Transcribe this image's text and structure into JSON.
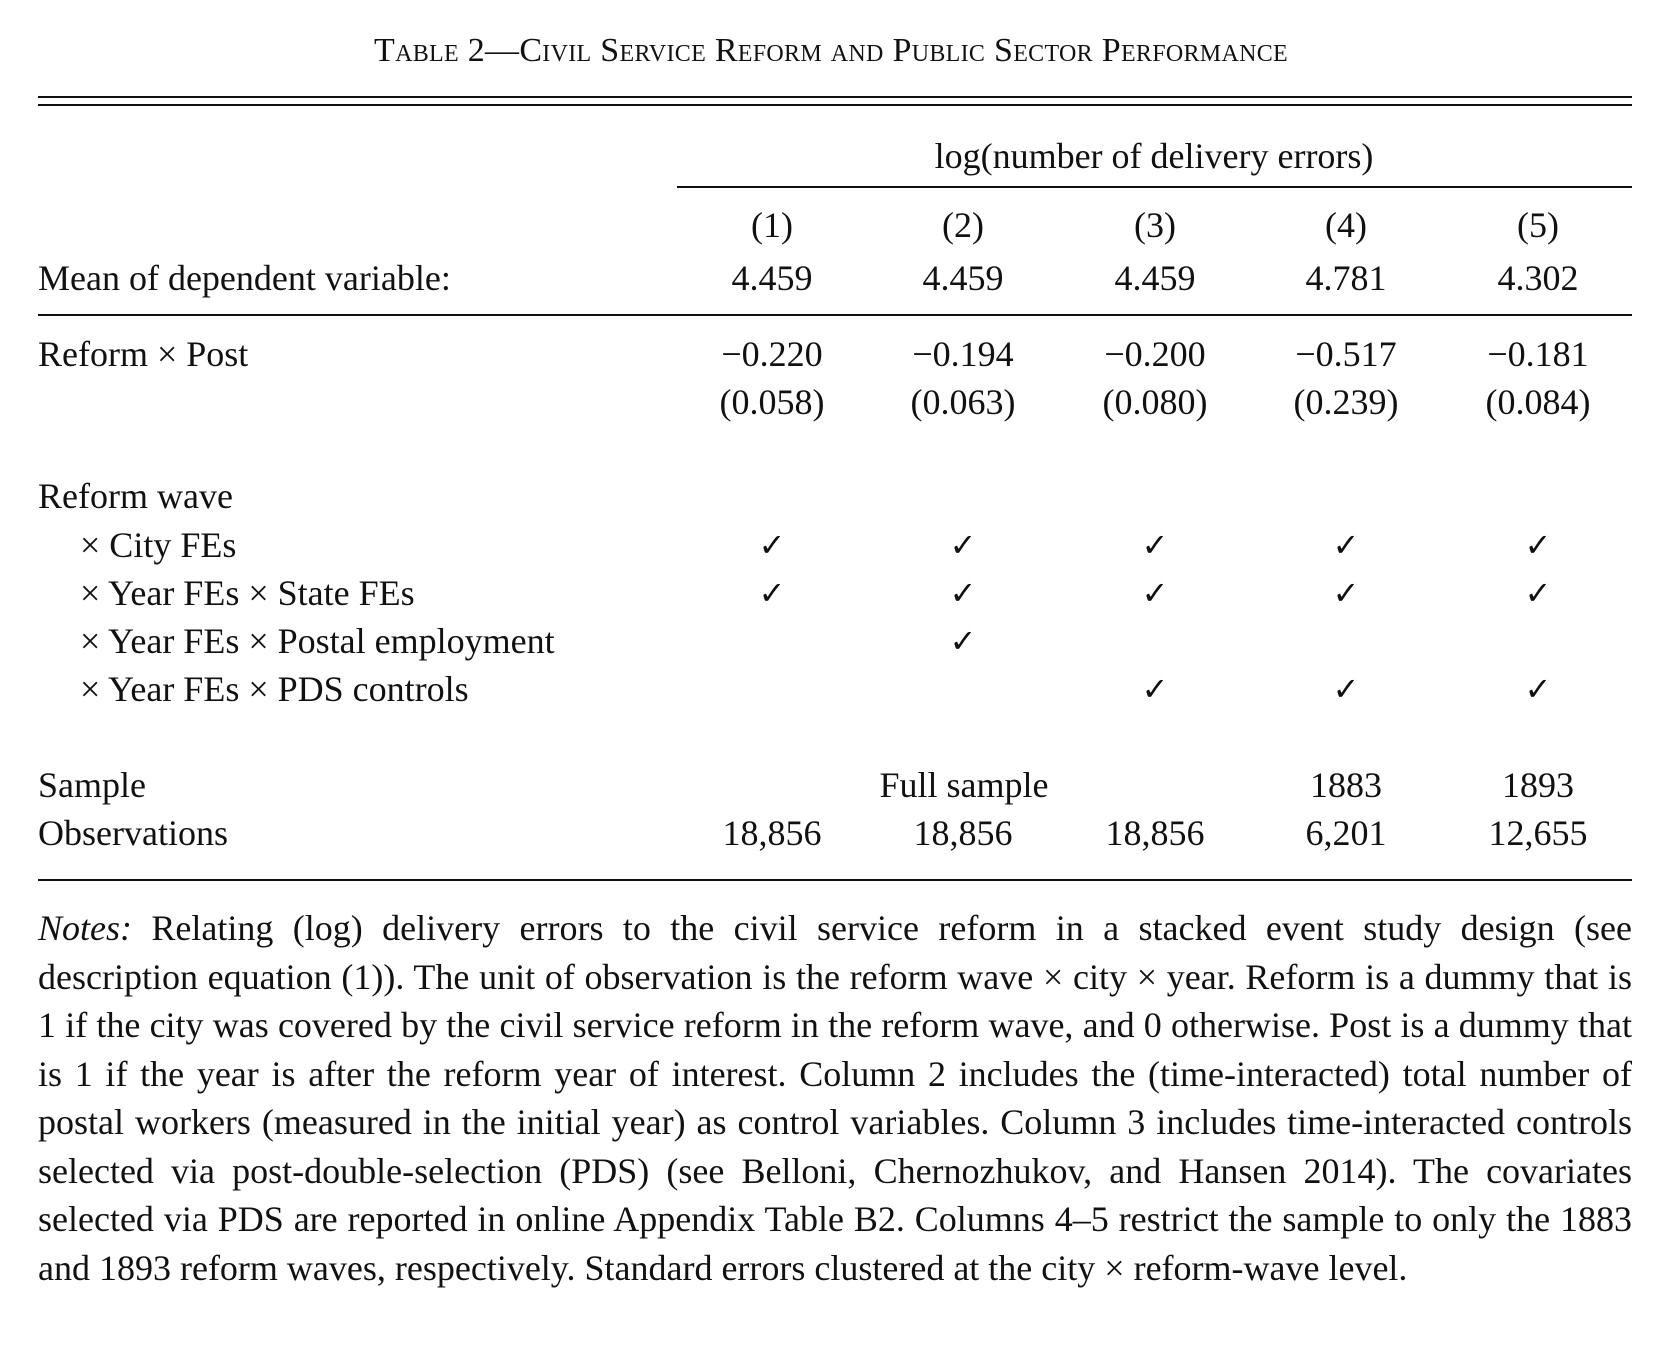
{
  "title": "Table 2—Civil Service Reform and Public Sector Performance",
  "dep_var_header": "log(number of delivery errors)",
  "columns": [
    "(1)",
    "(2)",
    "(3)",
    "(4)",
    "(5)"
  ],
  "mean_row": {
    "label": "Mean of dependent variable:",
    "values": [
      "4.459",
      "4.459",
      "4.459",
      "4.781",
      "4.302"
    ]
  },
  "reform_post": {
    "label": "Reform × Post",
    "coefs": [
      "−0.220",
      "−0.194",
      "−0.200",
      "−0.517",
      "−0.181"
    ],
    "ses": [
      "(0.058)",
      "(0.063)",
      "(0.080)",
      "(0.239)",
      "(0.084)"
    ]
  },
  "controls_header": "Reform wave",
  "controls": [
    {
      "label": "× City FEs",
      "checks": [
        true,
        true,
        true,
        true,
        true
      ]
    },
    {
      "label": "× Year FEs × State FEs",
      "checks": [
        true,
        true,
        true,
        true,
        true
      ]
    },
    {
      "label": "× Year FEs × Postal employment",
      "checks": [
        false,
        true,
        false,
        false,
        false
      ]
    },
    {
      "label": "× Year FEs × PDS controls",
      "checks": [
        false,
        false,
        true,
        true,
        true
      ]
    }
  ],
  "check_glyph": "✓",
  "sample_row": {
    "label": "Sample",
    "full": "Full sample",
    "col4": "1883",
    "col5": "1893"
  },
  "obs_row": {
    "label": "Observations",
    "values": [
      "18,856",
      "18,856",
      "18,856",
      "6,201",
      "12,655"
    ]
  },
  "notes": {
    "lead": "Notes:",
    "text": "Relating (log) delivery errors to the civil service reform in a stacked event study design (see description equation (1)). The unit of observation is the reform wave × city × year. Reform is a dummy that is 1 if the city was covered by the civil service reform in the reform wave, and 0 otherwise. Post is a dummy that is 1 if the year is after the reform year of interest. Column 2 includes the (time-interacted) total number of postal workers (measured in the initial year) as control variables. Column 3 includes time-interacted controls selected via post-double-selection (PDS) (see Belloni, Chernozhukov, and Hansen 2014). The covariates selected via PDS are reported in online Appendix Table B2. Columns 4–5 restrict the sample to only the 1883 and 1893 reform waves, respectively. Standard errors clustered at the city × reform-wave level."
  }
}
